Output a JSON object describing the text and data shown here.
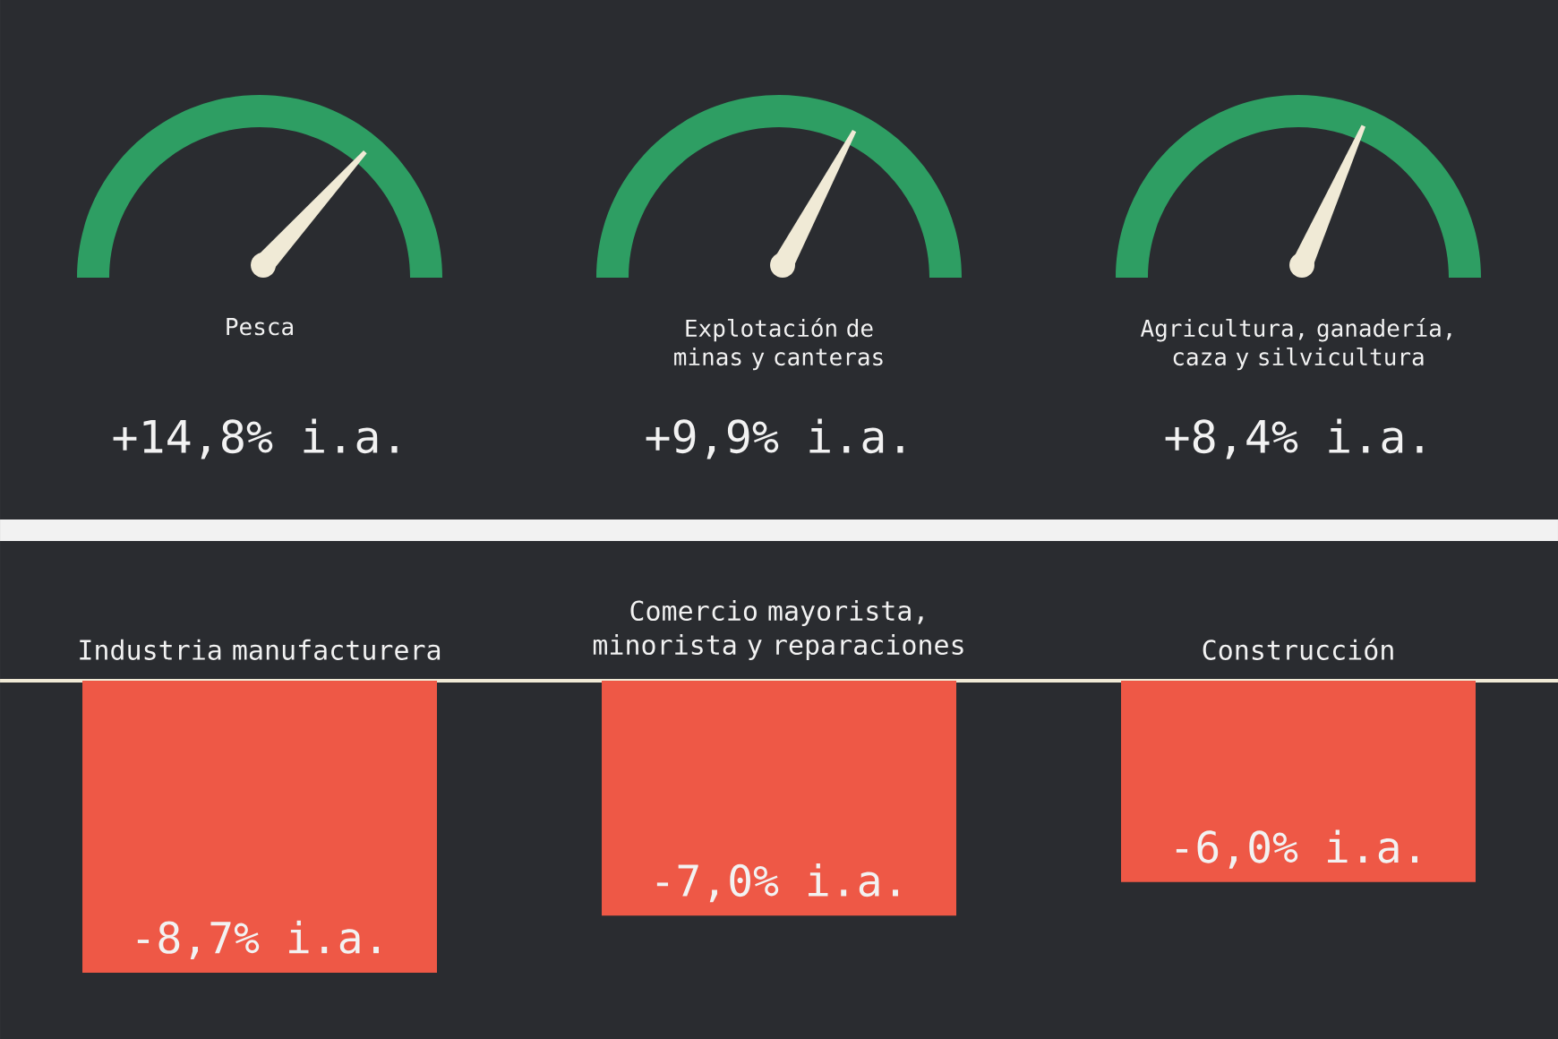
{
  "chart_data": [
    {
      "type": "other",
      "categories": [
        "Pesca",
        "Explotación de minas y canteras",
        "Agricultura, ganadería, caza y silvicultura"
      ],
      "values": [
        14.8,
        9.9,
        8.4
      ],
      "value_labels": [
        "+14,8% i.a.",
        "+9,9% i.a.",
        "+8,4% i.a."
      ],
      "color": "#2e9e63"
    },
    {
      "type": "bar",
      "categories": [
        "Industria manufacturera",
        "Comercio mayorista, minorista y reparaciones",
        "Construcción"
      ],
      "values": [
        -8.7,
        -7.0,
        -6.0
      ],
      "value_labels": [
        "-8,7% i.a.",
        "-7,0% i.a.",
        "-6,0% i.a."
      ],
      "color": "#ee5846"
    }
  ]
}
